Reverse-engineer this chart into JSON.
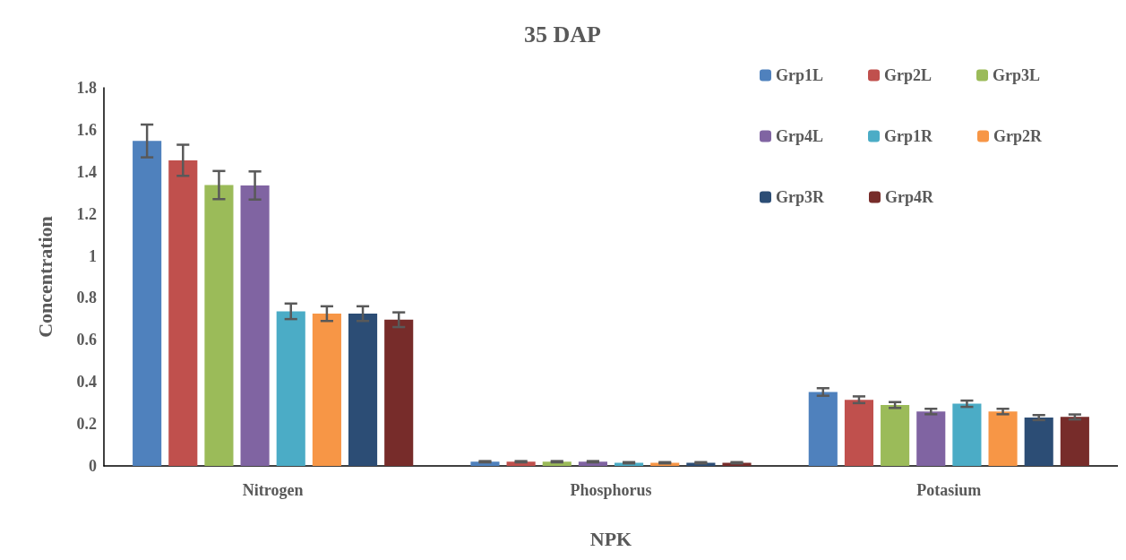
{
  "chart_data": {
    "type": "bar",
    "title": "35 DAP",
    "xlabel": "NPK",
    "ylabel": "Concentration",
    "categories": [
      "Nitrogen",
      "Phosphorus",
      "Potasium"
    ],
    "series": [
      {
        "name": "Grp1L",
        "color": "#4f81bd",
        "values": [
          1.547,
          0.02,
          0.352
        ],
        "errors": [
          0.078,
          0.003,
          0.018
        ]
      },
      {
        "name": "Grp2L",
        "color": "#c0504d",
        "values": [
          1.455,
          0.02,
          0.315
        ],
        "errors": [
          0.074,
          0.003,
          0.016
        ]
      },
      {
        "name": "Grp3L",
        "color": "#9bbb59",
        "values": [
          1.337,
          0.02,
          0.29
        ],
        "errors": [
          0.067,
          0.003,
          0.014
        ]
      },
      {
        "name": "Grp4L",
        "color": "#8064a2",
        "values": [
          1.335,
          0.02,
          0.259
        ],
        "errors": [
          0.067,
          0.003,
          0.013
        ]
      },
      {
        "name": "Grp1R",
        "color": "#4bacc6",
        "values": [
          0.736,
          0.015,
          0.296
        ],
        "errors": [
          0.037,
          0.003,
          0.015
        ]
      },
      {
        "name": "Grp2R",
        "color": "#f79646",
        "values": [
          0.725,
          0.015,
          0.259
        ],
        "errors": [
          0.035,
          0.003,
          0.013
        ]
      },
      {
        "name": "Grp3R",
        "color": "#2c4d75",
        "values": [
          0.725,
          0.015,
          0.23
        ],
        "errors": [
          0.035,
          0.003,
          0.012
        ]
      },
      {
        "name": "Grp4R",
        "color": "#772c2a",
        "values": [
          0.696,
          0.015,
          0.233
        ],
        "errors": [
          0.035,
          0.003,
          0.012
        ]
      }
    ],
    "ylim": [
      0,
      1.8
    ],
    "yticks": [
      0,
      0.2,
      0.4,
      0.6,
      0.8,
      1,
      1.2,
      1.4,
      1.6,
      1.8
    ],
    "grid": false,
    "legend": "top right"
  }
}
